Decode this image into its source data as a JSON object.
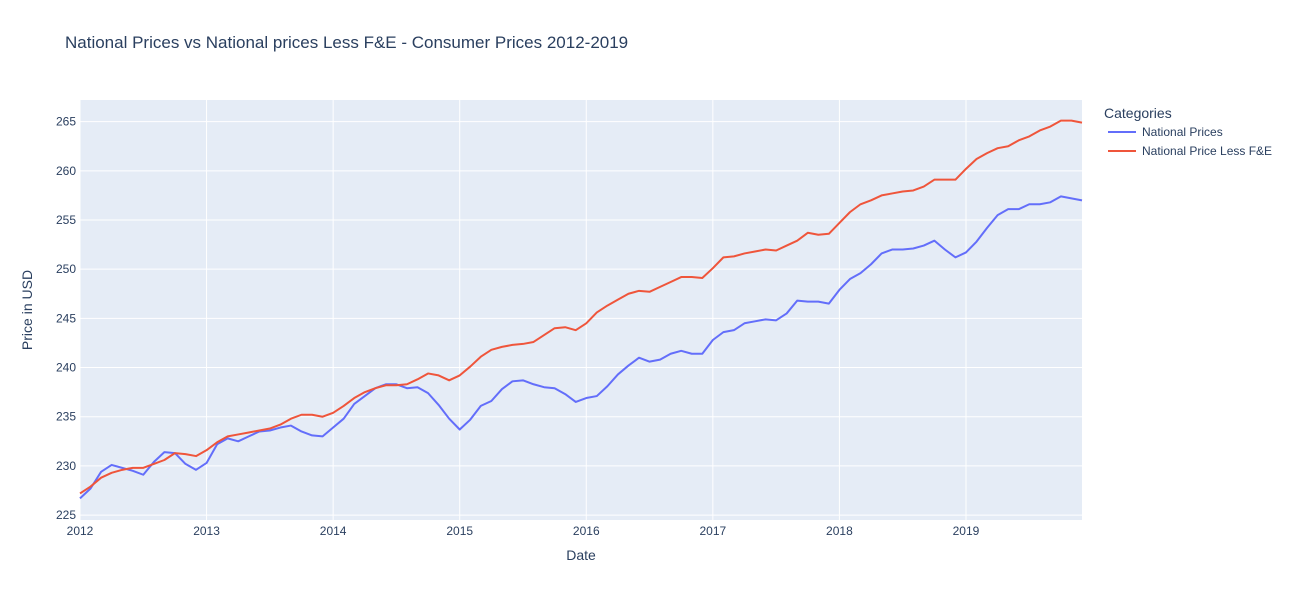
{
  "chart_data": {
    "type": "line",
    "title": "National Prices vs National prices Less F&E - Consumer Prices 2012-2019",
    "xlabel": "Date",
    "ylabel": "Price in USD",
    "legend_title": "Categories",
    "legend_position": "right",
    "grid": true,
    "xlim": [
      "2012-01",
      "2019-12"
    ],
    "ylim": [
      224.5,
      267.2
    ],
    "x_ticks": [
      "2012",
      "2013",
      "2014",
      "2015",
      "2016",
      "2017",
      "2018",
      "2019"
    ],
    "y_ticks": [
      "225",
      "230",
      "235",
      "240",
      "245",
      "250",
      "255",
      "260",
      "265"
    ],
    "colors": {
      "plot_bg": "#e5ecf6",
      "grid": "#ffffff",
      "text": "#2a3f5f"
    },
    "series": [
      {
        "name": "National Prices",
        "color": "#636efa",
        "start": "2012-01",
        "values": [
          226.7,
          227.7,
          229.4,
          230.1,
          229.8,
          229.5,
          229.1,
          230.4,
          231.4,
          231.3,
          230.2,
          229.6,
          230.3,
          232.2,
          232.8,
          232.5,
          233.0,
          233.5,
          233.6,
          233.9,
          234.1,
          233.5,
          233.1,
          233.0,
          233.9,
          234.8,
          236.3,
          237.1,
          237.9,
          238.3,
          238.3,
          237.9,
          238.0,
          237.4,
          236.2,
          234.8,
          233.7,
          234.7,
          236.1,
          236.6,
          237.8,
          238.6,
          238.7,
          238.3,
          238.0,
          237.9,
          237.3,
          236.5,
          236.9,
          237.1,
          238.1,
          239.3,
          240.2,
          241.0,
          240.6,
          240.8,
          241.4,
          241.7,
          241.4,
          241.4,
          242.8,
          243.6,
          243.8,
          244.5,
          244.7,
          244.9,
          244.8,
          245.5,
          246.8,
          246.7,
          246.7,
          246.5,
          247.9,
          249.0,
          249.6,
          250.5,
          251.6,
          252.0,
          252.0,
          252.1,
          252.4,
          252.9,
          252.0,
          251.2,
          251.7,
          252.8,
          254.2,
          255.5,
          256.1,
          256.1,
          256.6,
          256.6,
          256.8,
          257.4,
          257.2,
          257.0
        ]
      },
      {
        "name": "National Price Less F&E",
        "color": "#ef553b",
        "start": "2012-01",
        "values": [
          227.2,
          227.9,
          228.8,
          229.3,
          229.6,
          229.8,
          229.8,
          230.2,
          230.6,
          231.3,
          231.2,
          231.0,
          231.6,
          232.4,
          233.0,
          233.2,
          233.4,
          233.6,
          233.8,
          234.2,
          234.8,
          235.2,
          235.2,
          235.0,
          235.4,
          236.1,
          236.9,
          237.5,
          237.9,
          238.2,
          238.2,
          238.3,
          238.8,
          239.4,
          239.2,
          238.7,
          239.2,
          240.1,
          241.1,
          241.8,
          242.1,
          242.3,
          242.4,
          242.6,
          243.3,
          244.0,
          244.1,
          243.8,
          244.5,
          245.6,
          246.3,
          246.9,
          247.5,
          247.8,
          247.7,
          248.2,
          248.7,
          249.2,
          249.2,
          249.1,
          250.1,
          251.2,
          251.3,
          251.6,
          251.8,
          252.0,
          251.9,
          252.4,
          252.9,
          253.7,
          253.5,
          253.6,
          254.7,
          255.8,
          256.6,
          257.0,
          257.5,
          257.7,
          257.9,
          258.0,
          258.4,
          259.1,
          259.1,
          259.1,
          260.2,
          261.2,
          261.8,
          262.3,
          262.5,
          263.1,
          263.5,
          264.1,
          264.5,
          265.1,
          265.1,
          264.9
        ]
      }
    ]
  }
}
